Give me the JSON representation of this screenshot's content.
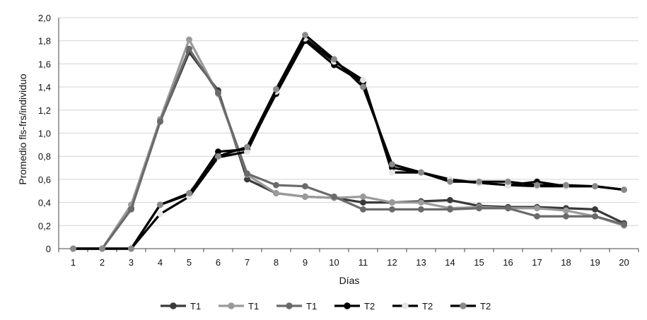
{
  "chart_data": {
    "type": "line",
    "title": "",
    "xlabel": "Días",
    "ylabel": "Promedio fls-frs/individuo",
    "x": [
      1,
      2,
      3,
      4,
      5,
      6,
      7,
      8,
      9,
      10,
      11,
      12,
      13,
      14,
      15,
      16,
      17,
      18,
      19,
      20
    ],
    "ylim": [
      0,
      2.0
    ],
    "yticks": [
      0,
      0.2,
      0.4,
      0.6,
      0.8,
      1.0,
      1.2,
      1.4,
      1.6,
      1.8,
      2.0
    ],
    "ytick_labels": [
      "0",
      "0,2",
      "0,4",
      "0,6",
      "0,8",
      "1,0",
      "1,2",
      "1,4",
      "1,6",
      "1,8",
      "2,0"
    ],
    "grid": true,
    "legend_position": "bottom",
    "series": [
      {
        "name": "T1",
        "color": "#3a3a3a",
        "marker": "#3a3a3a",
        "values": [
          0,
          0,
          0.35,
          1.1,
          1.7,
          1.37,
          0.6,
          0.48,
          0.45,
          0.44,
          0.4,
          0.4,
          0.41,
          0.42,
          0.37,
          0.36,
          0.36,
          0.35,
          0.34,
          0.22
        ]
      },
      {
        "name": "T1",
        "color": "#9a9a9a",
        "marker": "#9a9a9a",
        "values": [
          0,
          0,
          0.38,
          1.12,
          1.81,
          1.34,
          0.64,
          0.48,
          0.45,
          0.44,
          0.45,
          0.4,
          0.4,
          0.35,
          0.36,
          0.35,
          0.35,
          0.33,
          0.28,
          0.2
        ]
      },
      {
        "name": "T1",
        "color": "#6a6a6a",
        "marker": "#6a6a6a",
        "values": [
          0,
          0,
          0.34,
          1.1,
          1.73,
          1.35,
          0.65,
          0.55,
          0.54,
          0.45,
          0.34,
          0.34,
          0.34,
          0.34,
          0.35,
          0.35,
          0.28,
          0.28,
          0.28,
          0.21
        ]
      },
      {
        "name": "T2",
        "color": "#000000",
        "marker": "#000000",
        "values": [
          0,
          0,
          0,
          0.38,
          0.47,
          0.84,
          0.86,
          1.34,
          1.8,
          1.59,
          1.44,
          0.7,
          0.66,
          0.59,
          0.57,
          0.55,
          0.58,
          0.54,
          0.54,
          0.51
        ]
      },
      {
        "name": "T2",
        "color": "#000000",
        "marker": "#e6e6e6",
        "values": [
          0,
          0,
          0,
          0.3,
          0.45,
          0.79,
          0.84,
          1.36,
          1.82,
          1.62,
          1.46,
          0.66,
          0.66,
          0.6,
          0.57,
          0.55,
          0.54,
          0.54,
          0.54,
          0.51
        ]
      },
      {
        "name": "T2",
        "color": "#000000",
        "marker": "#8a8a8a",
        "values": [
          0,
          0,
          0,
          0.38,
          0.48,
          0.8,
          0.88,
          1.38,
          1.85,
          1.64,
          1.4,
          0.73,
          0.66,
          0.58,
          0.58,
          0.58,
          0.55,
          0.55,
          0.54,
          0.51
        ]
      }
    ]
  }
}
